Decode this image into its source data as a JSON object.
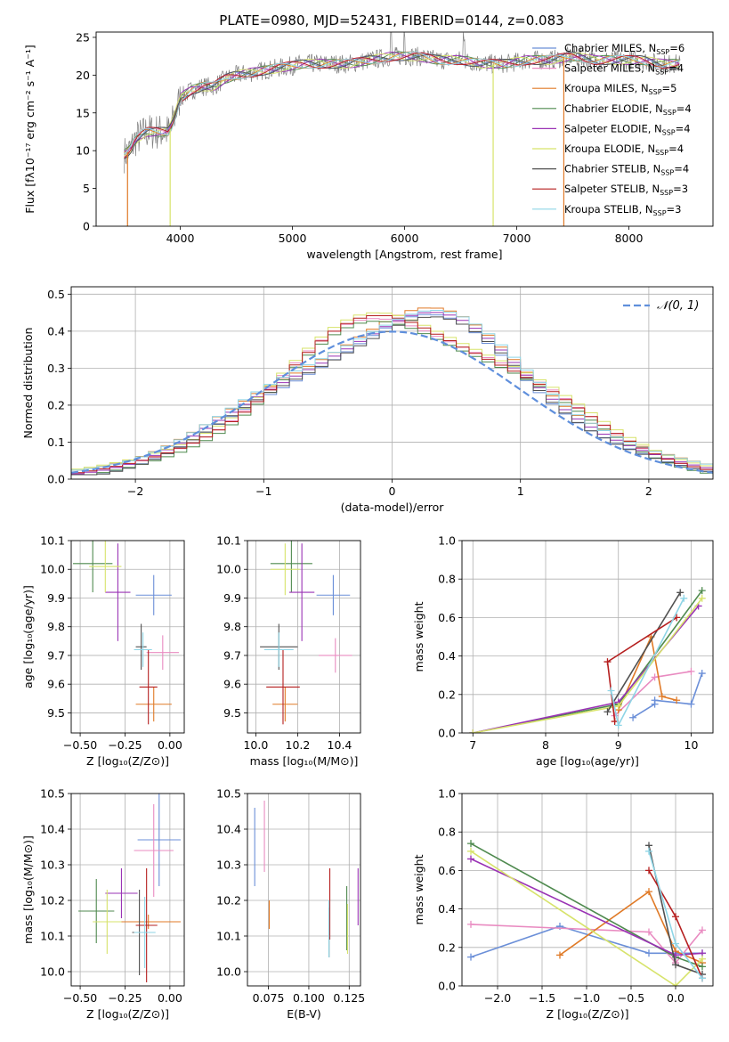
{
  "series_styles": [
    {
      "name": "Chabrier MILES",
      "color": "#6b8fd8"
    },
    {
      "name": "Salpeter MILES",
      "color": "#e98bc1"
    },
    {
      "name": "Kroupa MILES",
      "color": "#e07a27"
    },
    {
      "name": "Chabrier ELODIE",
      "color": "#4f8a4f"
    },
    {
      "name": "Salpeter ELODIE",
      "color": "#9a33b5"
    },
    {
      "name": "Kroupa ELODIE",
      "color": "#d7e36b"
    },
    {
      "name": "Chabrier STELIB",
      "color": "#505050"
    },
    {
      "name": "Salpeter STELIB",
      "color": "#b51f1f"
    },
    {
      "name": "Kroupa STELIB",
      "color": "#8ed5e6"
    }
  ],
  "chart_data": [
    {
      "id": "spectrum",
      "type": "line",
      "title": "PLATE=0980, MJD=52431, FIBERID=0144, z=0.083",
      "xlabel": "wavelength [Angstrom, rest frame]",
      "ylabel": "Flux [fλ10⁻¹⁷ erg cm⁻² s⁻¹ A⁻¹]",
      "xlim": [
        3250,
        8750
      ],
      "ylim": [
        0,
        25.7
      ],
      "xticks": [
        4000,
        5000,
        6000,
        7000,
        8000
      ],
      "yticks": [
        0,
        5,
        10,
        15,
        20,
        25
      ],
      "grid": false,
      "legend_position": "right",
      "legend": [
        {
          "label": "Chabrier MILES, N",
          "n": "6"
        },
        {
          "label": "Salpeter MILES, N",
          "n": "4"
        },
        {
          "label": "Kroupa MILES, N",
          "n": "5"
        },
        {
          "label": "Chabrier ELODIE, N",
          "n": "4"
        },
        {
          "label": "Salpeter ELODIE, N",
          "n": "4"
        },
        {
          "label": "Kroupa ELODIE, N",
          "n": "4"
        },
        {
          "label": "Chabrier STELIB, N",
          "n": "4"
        },
        {
          "label": "Salpeter STELIB, N",
          "n": "3"
        },
        {
          "label": "Kroupa STELIB, N",
          "n": "3"
        }
      ],
      "legend_subscript": "SSP",
      "observed_continuum_x": [
        3500,
        3550,
        3600,
        3650,
        3700,
        3800,
        3900,
        3950,
        4000,
        4100,
        4200,
        4300,
        4400,
        4500,
        4700,
        4900,
        5100,
        5300,
        5500,
        5700,
        5900,
        6100,
        6300,
        6500,
        6700,
        6900,
        7100,
        7300,
        7500,
        7700,
        7900,
        8100,
        8300,
        8450
      ],
      "observed_continuum_y": [
        9.5,
        10.0,
        11.5,
        12.0,
        12.5,
        12.5,
        12.5,
        14.5,
        17.0,
        18.0,
        18.5,
        18.5,
        19.5,
        20.0,
        20.5,
        21.0,
        21.5,
        21.5,
        21.5,
        22.0,
        22.5,
        22.5,
        22.0,
        22.0,
        21.5,
        21.5,
        22.0,
        22.0,
        22.5,
        22.0,
        22.0,
        22.0,
        21.5,
        21.5
      ],
      "model_spikes": [
        {
          "x": 3530,
          "series": "Kroupa MILES"
        },
        {
          "x": 3910,
          "series": "Kroupa ELODIE"
        },
        {
          "x": 6790,
          "series": "Kroupa ELODIE"
        },
        {
          "x": 7420,
          "series": "Kroupa MILES"
        }
      ]
    },
    {
      "id": "residuals",
      "type": "line",
      "xlabel": "(data-model)/error",
      "ylabel": "Normed distribution",
      "xlim": [
        -2.5,
        2.5
      ],
      "ylim": [
        0,
        0.52
      ],
      "xticks": [
        -2,
        -1,
        0,
        1,
        2
      ],
      "xtick_labels": [
        "−2",
        "−1",
        "0",
        "1",
        "2"
      ],
      "yticks": [
        0.0,
        0.1,
        0.2,
        0.3,
        0.4,
        0.5
      ],
      "grid": true,
      "legend_position": "top-right",
      "normal_label": "𝒩(0, 1)",
      "bin_width": 0.1
    },
    {
      "id": "age_vs_Z",
      "type": "scatter",
      "xlabel": "Z [log₁₀(Z/Z⊙)]",
      "ylabel": "age  [log₁₀(age/yr)]",
      "xlim": [
        -0.55,
        0.08
      ],
      "ylim": [
        9.43,
        10.1
      ],
      "xticks": [
        -0.5,
        -0.25,
        0.0
      ],
      "xtick_labels": [
        "−0.50",
        "−0.25",
        "0.00"
      ],
      "yticks": [
        9.5,
        9.6,
        9.7,
        9.8,
        9.9,
        10.0,
        10.1
      ],
      "grid": true,
      "points": [
        {
          "series": "Chabrier MILES",
          "x": -0.09,
          "y": 9.91,
          "xerr": 0.1,
          "yerr": 0.07
        },
        {
          "series": "Salpeter MILES",
          "x": -0.04,
          "y": 9.71,
          "xerr": 0.09,
          "yerr": 0.06
        },
        {
          "series": "Kroupa MILES",
          "x": -0.09,
          "y": 9.53,
          "xerr": 0.1,
          "yerr": 0.06
        },
        {
          "series": "Chabrier ELODIE",
          "x": -0.43,
          "y": 10.02,
          "xerr": 0.11,
          "yerr": 0.1
        },
        {
          "series": "Salpeter ELODIE",
          "x": -0.29,
          "y": 9.92,
          "xerr": 0.07,
          "yerr": 0.17
        },
        {
          "series": "Kroupa ELODIE",
          "x": -0.36,
          "y": 10.01,
          "xerr": 0.09,
          "yerr": 0.09
        },
        {
          "series": "Chabrier STELIB",
          "x": -0.16,
          "y": 9.73,
          "xerr": 0.03,
          "yerr": 0.08
        },
        {
          "series": "Salpeter STELIB",
          "x": -0.12,
          "y": 9.59,
          "xerr": 0.05,
          "yerr": 0.13
        },
        {
          "series": "Kroupa STELIB",
          "x": -0.15,
          "y": 9.72,
          "xerr": 0.05,
          "yerr": 0.06
        }
      ]
    },
    {
      "id": "age_vs_mass",
      "type": "scatter",
      "xlabel": "mass [log₁₀(M/M⊙)]",
      "ylabel": "",
      "xlim": [
        9.96,
        10.5
      ],
      "ylim": [
        9.43,
        10.1
      ],
      "xticks": [
        10.0,
        10.2,
        10.4
      ],
      "xtick_labels": [
        "10.0",
        "10.2",
        "10.4"
      ],
      "yticks": [
        9.5,
        9.6,
        9.7,
        9.8,
        9.9,
        10.0,
        10.1
      ],
      "grid": true,
      "points": [
        {
          "series": "Chabrier MILES",
          "x": 10.37,
          "y": 9.91,
          "xerr": 0.08,
          "yerr": 0.07
        },
        {
          "series": "Salpeter MILES",
          "x": 10.38,
          "y": 9.7,
          "xerr": 0.08,
          "yerr": 0.06
        },
        {
          "series": "Kroupa MILES",
          "x": 10.14,
          "y": 9.53,
          "xerr": 0.06,
          "yerr": 0.06
        },
        {
          "series": "Chabrier ELODIE",
          "x": 10.17,
          "y": 10.02,
          "xerr": 0.1,
          "yerr": 0.1
        },
        {
          "series": "Salpeter ELODIE",
          "x": 10.22,
          "y": 9.92,
          "xerr": 0.06,
          "yerr": 0.17
        },
        {
          "series": "Kroupa ELODIE",
          "x": 10.14,
          "y": 10.0,
          "xerr": 0.07,
          "yerr": 0.09
        },
        {
          "series": "Chabrier STELIB",
          "x": 10.11,
          "y": 9.73,
          "xerr": 0.09,
          "yerr": 0.08
        },
        {
          "series": "Salpeter STELIB",
          "x": 10.13,
          "y": 9.59,
          "xerr": 0.08,
          "yerr": 0.13
        },
        {
          "series": "Kroupa STELIB",
          "x": 10.11,
          "y": 9.72,
          "xerr": 0.07,
          "yerr": 0.06
        }
      ]
    },
    {
      "id": "massweight_vs_age",
      "type": "line",
      "xlabel": "age  [log₁₀(age/yr)]",
      "ylabel": "mass weight",
      "xlim": [
        6.85,
        10.3
      ],
      "ylim": [
        0,
        1.0
      ],
      "xticks": [
        7,
        8,
        9,
        10
      ],
      "yticks": [
        0.0,
        0.2,
        0.4,
        0.6,
        0.8,
        1.0
      ],
      "grid": true,
      "lines": [
        {
          "series": "Chabrier MILES",
          "points": [
            [
              9.2,
              0.08
            ],
            [
              9.5,
              0.15
            ],
            [
              9.5,
              0.17
            ],
            [
              10.0,
              0.15
            ],
            [
              10.15,
              0.31
            ]
          ]
        },
        {
          "series": "Salpeter MILES",
          "points": [
            [
              8.95,
              0.09
            ],
            [
              9.5,
              0.29
            ],
            [
              10.0,
              0.32
            ]
          ]
        },
        {
          "series": "Kroupa MILES",
          "points": [
            [
              9.0,
              0.12
            ],
            [
              9.45,
              0.5
            ],
            [
              9.6,
              0.19
            ],
            [
              9.8,
              0.17
            ]
          ]
        },
        {
          "series": "Chabrier ELODIE",
          "points": [
            [
              7.0,
              0.0
            ],
            [
              9.0,
              0.15
            ],
            [
              10.15,
              0.74
            ]
          ]
        },
        {
          "series": "Salpeter ELODIE",
          "points": [
            [
              7.0,
              0.0
            ],
            [
              9.0,
              0.16
            ],
            [
              10.1,
              0.66
            ]
          ]
        },
        {
          "series": "Kroupa ELODIE",
          "points": [
            [
              7.0,
              0.0
            ],
            [
              9.0,
              0.14
            ],
            [
              10.15,
              0.7
            ]
          ]
        },
        {
          "series": "Chabrier STELIB",
          "points": [
            [
              8.85,
              0.11
            ],
            [
              9.85,
              0.73
            ]
          ]
        },
        {
          "series": "Salpeter STELIB",
          "points": [
            [
              8.95,
              0.06
            ],
            [
              8.85,
              0.37
            ],
            [
              9.8,
              0.6
            ]
          ]
        },
        {
          "series": "Kroupa STELIB",
          "points": [
            [
              8.9,
              0.22
            ],
            [
              9.0,
              0.04
            ],
            [
              9.9,
              0.7
            ]
          ]
        }
      ]
    },
    {
      "id": "mass_vs_Z",
      "type": "scatter",
      "xlabel": "Z [log₁₀(Z/Z⊙)]",
      "ylabel": "mass [log₁₀(M/M⊙)]",
      "xlim": [
        -0.55,
        0.08
      ],
      "ylim": [
        9.96,
        10.5
      ],
      "xticks": [
        -0.5,
        -0.25,
        0.0
      ],
      "xtick_labels": [
        "−0.50",
        "−0.25",
        "0.00"
      ],
      "yticks": [
        10.0,
        10.1,
        10.2,
        10.3,
        10.4,
        10.5
      ],
      "grid": true,
      "points": [
        {
          "series": "Chabrier MILES",
          "x": -0.06,
          "y": 10.37,
          "xerr": 0.12,
          "yerr": 0.13
        },
        {
          "series": "Salpeter MILES",
          "x": -0.09,
          "y": 10.34,
          "xerr": 0.11,
          "yerr": 0.13
        },
        {
          "series": "Kroupa MILES",
          "x": -0.12,
          "y": 10.14,
          "xerr": 0.18,
          "yerr": 0.02
        },
        {
          "series": "Chabrier ELODIE",
          "x": -0.41,
          "y": 10.17,
          "xerr": 0.1,
          "yerr": 0.09
        },
        {
          "series": "Salpeter ELODIE",
          "x": -0.27,
          "y": 10.22,
          "xerr": 0.09,
          "yerr": 0.07
        },
        {
          "series": "Kroupa ELODIE",
          "x": -0.35,
          "y": 10.14,
          "xerr": 0.08,
          "yerr": 0.09
        },
        {
          "series": "Chabrier STELIB",
          "x": -0.17,
          "y": 10.11,
          "xerr": 0.04,
          "yerr": 0.12
        },
        {
          "series": "Salpeter STELIB",
          "x": -0.13,
          "y": 10.13,
          "xerr": 0.06,
          "yerr": 0.16
        },
        {
          "series": "Kroupa STELIB",
          "x": -0.14,
          "y": 10.11,
          "xerr": 0.06,
          "yerr": 0.1
        }
      ]
    },
    {
      "id": "mass_vs_EBV",
      "type": "scatter",
      "xlabel": "E(B-V)",
      "ylabel": "",
      "xlim": [
        0.062,
        0.132
      ],
      "ylim": [
        9.96,
        10.5
      ],
      "xticks": [
        0.075,
        0.1,
        0.125
      ],
      "xtick_labels": [
        "0.075",
        "0.100",
        "0.125"
      ],
      "yticks": [
        10.0,
        10.1,
        10.2,
        10.3,
        10.4,
        10.5
      ],
      "grid": true,
      "points": [
        {
          "series": "Chabrier MILES",
          "x": 0.0665,
          "y": 10.35,
          "yerr": 0.11
        },
        {
          "series": "Salpeter MILES",
          "x": 0.0725,
          "y": 10.38,
          "yerr": 0.1
        },
        {
          "series": "Kroupa MILES",
          "x": 0.0755,
          "y": 10.16,
          "yerr": 0.04
        },
        {
          "series": "Chabrier ELODIE",
          "x": 0.1235,
          "y": 10.15,
          "yerr": 0.09
        },
        {
          "series": "Salpeter ELODIE",
          "x": 0.1305,
          "y": 10.21,
          "yerr": 0.08
        },
        {
          "series": "Kroupa ELODIE",
          "x": 0.124,
          "y": 10.12,
          "yerr": 0.07
        },
        {
          "series": "Chabrier STELIB",
          "x": 0.1125,
          "y": 10.11,
          "yerr": 0.07
        },
        {
          "series": "Salpeter STELIB",
          "x": 0.113,
          "y": 10.19,
          "yerr": 0.1
        },
        {
          "series": "Kroupa STELIB",
          "x": 0.1125,
          "y": 10.12,
          "yerr": 0.08
        }
      ]
    },
    {
      "id": "massweight_vs_Z",
      "type": "line",
      "xlabel": "Z [log₁₀(Z/Z⊙)]",
      "ylabel": "mass weight",
      "xlim": [
        -2.4,
        0.42
      ],
      "ylim": [
        0,
        1.0
      ],
      "xticks": [
        -2.0,
        -1.5,
        -1.0,
        -0.5,
        0.0
      ],
      "xtick_labels": [
        "−2.0",
        "−1.5",
        "−1.0",
        "−0.5",
        "0.0"
      ],
      "yticks": [
        0.0,
        0.2,
        0.4,
        0.6,
        0.8,
        1.0
      ],
      "grid": true,
      "lines": [
        {
          "series": "Chabrier MILES",
          "points": [
            [
              -2.3,
              0.15
            ],
            [
              -1.3,
              0.31
            ],
            [
              -0.3,
              0.17
            ],
            [
              0.0,
              0.17
            ],
            [
              0.3,
              0.17
            ]
          ]
        },
        {
          "series": "Salpeter MILES",
          "points": [
            [
              -2.3,
              0.32
            ],
            [
              -0.3,
              0.28
            ],
            [
              0.0,
              0.12
            ],
            [
              0.3,
              0.29
            ]
          ]
        },
        {
          "series": "Kroupa MILES",
          "points": [
            [
              -1.3,
              0.16
            ],
            [
              -0.3,
              0.49
            ],
            [
              0.0,
              0.18
            ],
            [
              0.3,
              0.12
            ]
          ]
        },
        {
          "series": "Chabrier ELODIE",
          "points": [
            [
              -2.3,
              0.74
            ],
            [
              0.0,
              0.15
            ],
            [
              0.3,
              0.1
            ]
          ]
        },
        {
          "series": "Salpeter ELODIE",
          "points": [
            [
              -2.3,
              0.66
            ],
            [
              0.0,
              0.16
            ],
            [
              0.3,
              0.17
            ]
          ]
        },
        {
          "series": "Kroupa ELODIE",
          "points": [
            [
              -2.3,
              0.7
            ],
            [
              0.0,
              0.0
            ],
            [
              0.3,
              0.14
            ]
          ]
        },
        {
          "series": "Chabrier STELIB",
          "points": [
            [
              -0.3,
              0.73
            ],
            [
              0.0,
              0.11
            ],
            [
              0.3,
              0.06
            ]
          ]
        },
        {
          "series": "Salpeter STELIB",
          "points": [
            [
              -0.3,
              0.6
            ],
            [
              0.0,
              0.36
            ],
            [
              0.3,
              0.04
            ]
          ]
        },
        {
          "series": "Kroupa STELIB",
          "points": [
            [
              -0.3,
              0.7
            ],
            [
              0.0,
              0.22
            ],
            [
              0.3,
              0.04
            ]
          ]
        }
      ]
    }
  ]
}
